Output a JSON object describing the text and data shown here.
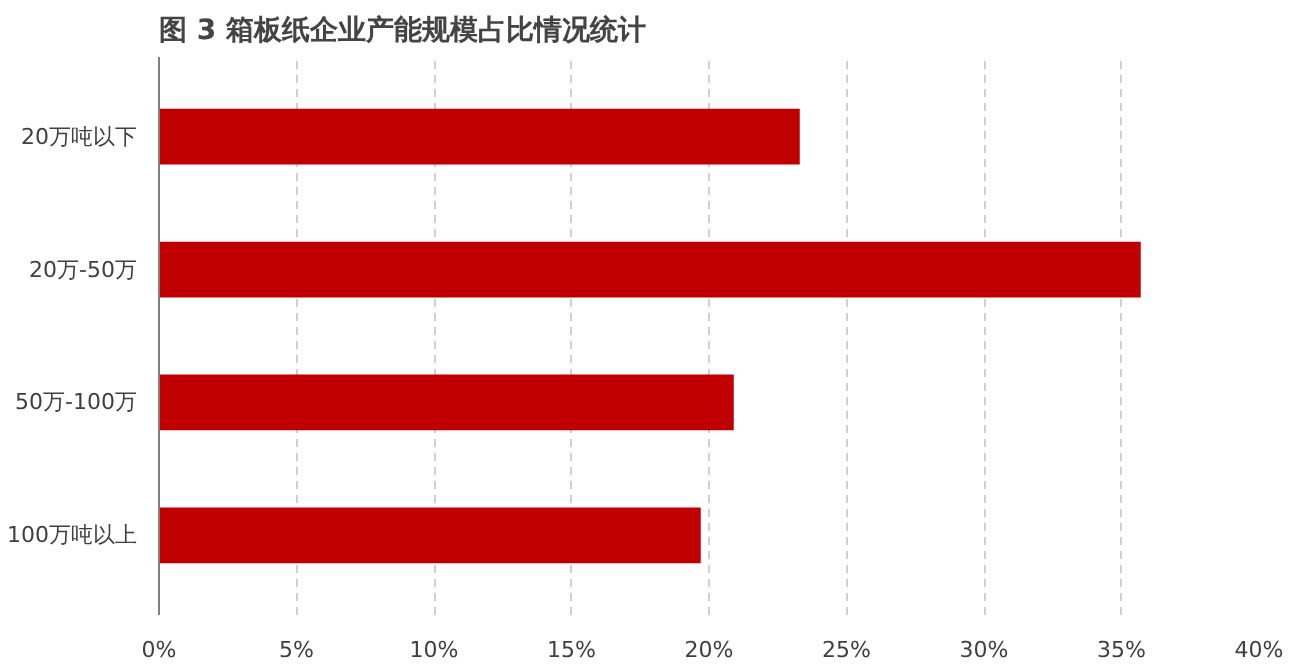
{
  "chart_data": {
    "type": "bar",
    "orientation": "horizontal",
    "title": "图 3  箱板纸企业产能规模占比情况统计",
    "categories": [
      "20万吨以下",
      "20万-50万",
      "50万-100万",
      "100万吨以上"
    ],
    "values": [
      23.3,
      35.7,
      20.9,
      19.7
    ],
    "color": "#c00000",
    "xlim": [
      0,
      40
    ],
    "xticks": [
      {
        "value": 0,
        "label": "0%"
      },
      {
        "value": 5,
        "label": "5%"
      },
      {
        "value": 10,
        "label": "10%"
      },
      {
        "value": 15,
        "label": "15%"
      },
      {
        "value": 20,
        "label": "20%"
      },
      {
        "value": 25,
        "label": "25%"
      },
      {
        "value": 30,
        "label": "30%"
      },
      {
        "value": 35,
        "label": "35%"
      },
      {
        "value": 40,
        "label": "40%"
      }
    ],
    "grid": "x"
  }
}
